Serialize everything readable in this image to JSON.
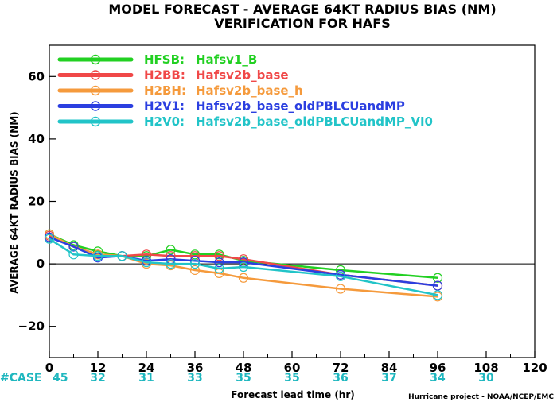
{
  "chart_data": {
    "type": "line",
    "title": "MODEL FORECAST - AVERAGE 64KT RADIUS BIAS (NM)",
    "subtitle": "VERIFICATION FOR HAFS",
    "xlabel": "Forecast lead time (hr)",
    "ylabel": "AVERAGE 64KT RADIUS BIAS (NM)",
    "xlim": [
      0,
      120
    ],
    "ylim": [
      -30,
      70
    ],
    "xticks": [
      0,
      12,
      24,
      36,
      48,
      60,
      72,
      84,
      96,
      108,
      120
    ],
    "yticks": [
      -20,
      0,
      20,
      40,
      60
    ],
    "zero_line": true,
    "legend_position": "top-left",
    "case_label": "#CASE",
    "case_x": [
      0,
      12,
      24,
      36,
      48,
      60,
      72,
      84,
      96,
      108
    ],
    "case_counts": [
      "45",
      "32",
      "31",
      "33",
      "35",
      "35",
      "36",
      "37",
      "34",
      "30"
    ],
    "credit": "Hurricane project - NOAA/NCEP/EMC",
    "series": [
      {
        "name": "HFSB: Hafsv1_B",
        "code": "HFSB:",
        "label": "Hafsv1_B",
        "color": "#22d022",
        "x": [
          0,
          6,
          12,
          18,
          24,
          30,
          36,
          42,
          48,
          72,
          96
        ],
        "y": [
          9.5,
          6,
          4,
          2.5,
          2.5,
          4.5,
          3,
          3,
          1,
          -2,
          -4.5
        ]
      },
      {
        "name": "H2BB: Hafsv2b_base",
        "code": "H2BB:",
        "label": "Hafsv2b_base",
        "color": "#f04848",
        "x": [
          0,
          6,
          12,
          18,
          24,
          30,
          36,
          42,
          48,
          72,
          96
        ],
        "y": [
          9,
          5.5,
          3,
          2.5,
          3,
          2.5,
          2.5,
          2.5,
          1.5,
          -3.5,
          -7
        ]
      },
      {
        "name": "H2BH: Hafsv2b_base_h",
        "code": "H2BH:",
        "label": "Hafsv2b_base_h",
        "color": "#f59a3c",
        "x": [
          0,
          6,
          12,
          18,
          24,
          30,
          36,
          42,
          48,
          72,
          96
        ],
        "y": [
          9.5,
          5.5,
          3,
          2.5,
          0,
          -0.5,
          -2,
          -3,
          -4.5,
          -8,
          -10.5
        ]
      },
      {
        "name": "H2V1: Hafsv2b_base_oldPBLCUandMP",
        "code": "H2V1:",
        "label": "Hafsv2b_base_oldPBLCUandMP",
        "color": "#2b3fe0",
        "x": [
          0,
          6,
          12,
          18,
          24,
          30,
          36,
          42,
          48,
          72,
          96
        ],
        "y": [
          8.5,
          5.5,
          2,
          2.5,
          1,
          1.5,
          1,
          0.5,
          0.5,
          -3.5,
          -7
        ]
      },
      {
        "name": "H2V0: Hafsv2b_base_oldPBLCUandMP_VI0",
        "code": "H2V0:",
        "label": "Hafsv2b_base_oldPBLCUandMP_VI0",
        "color": "#22c4c8",
        "x": [
          0,
          6,
          12,
          18,
          24,
          30,
          36,
          42,
          48,
          72,
          96
        ],
        "y": [
          8,
          3,
          2.5,
          2.5,
          0.5,
          0,
          0,
          -1.5,
          -1,
          -4,
          -10
        ]
      }
    ]
  }
}
